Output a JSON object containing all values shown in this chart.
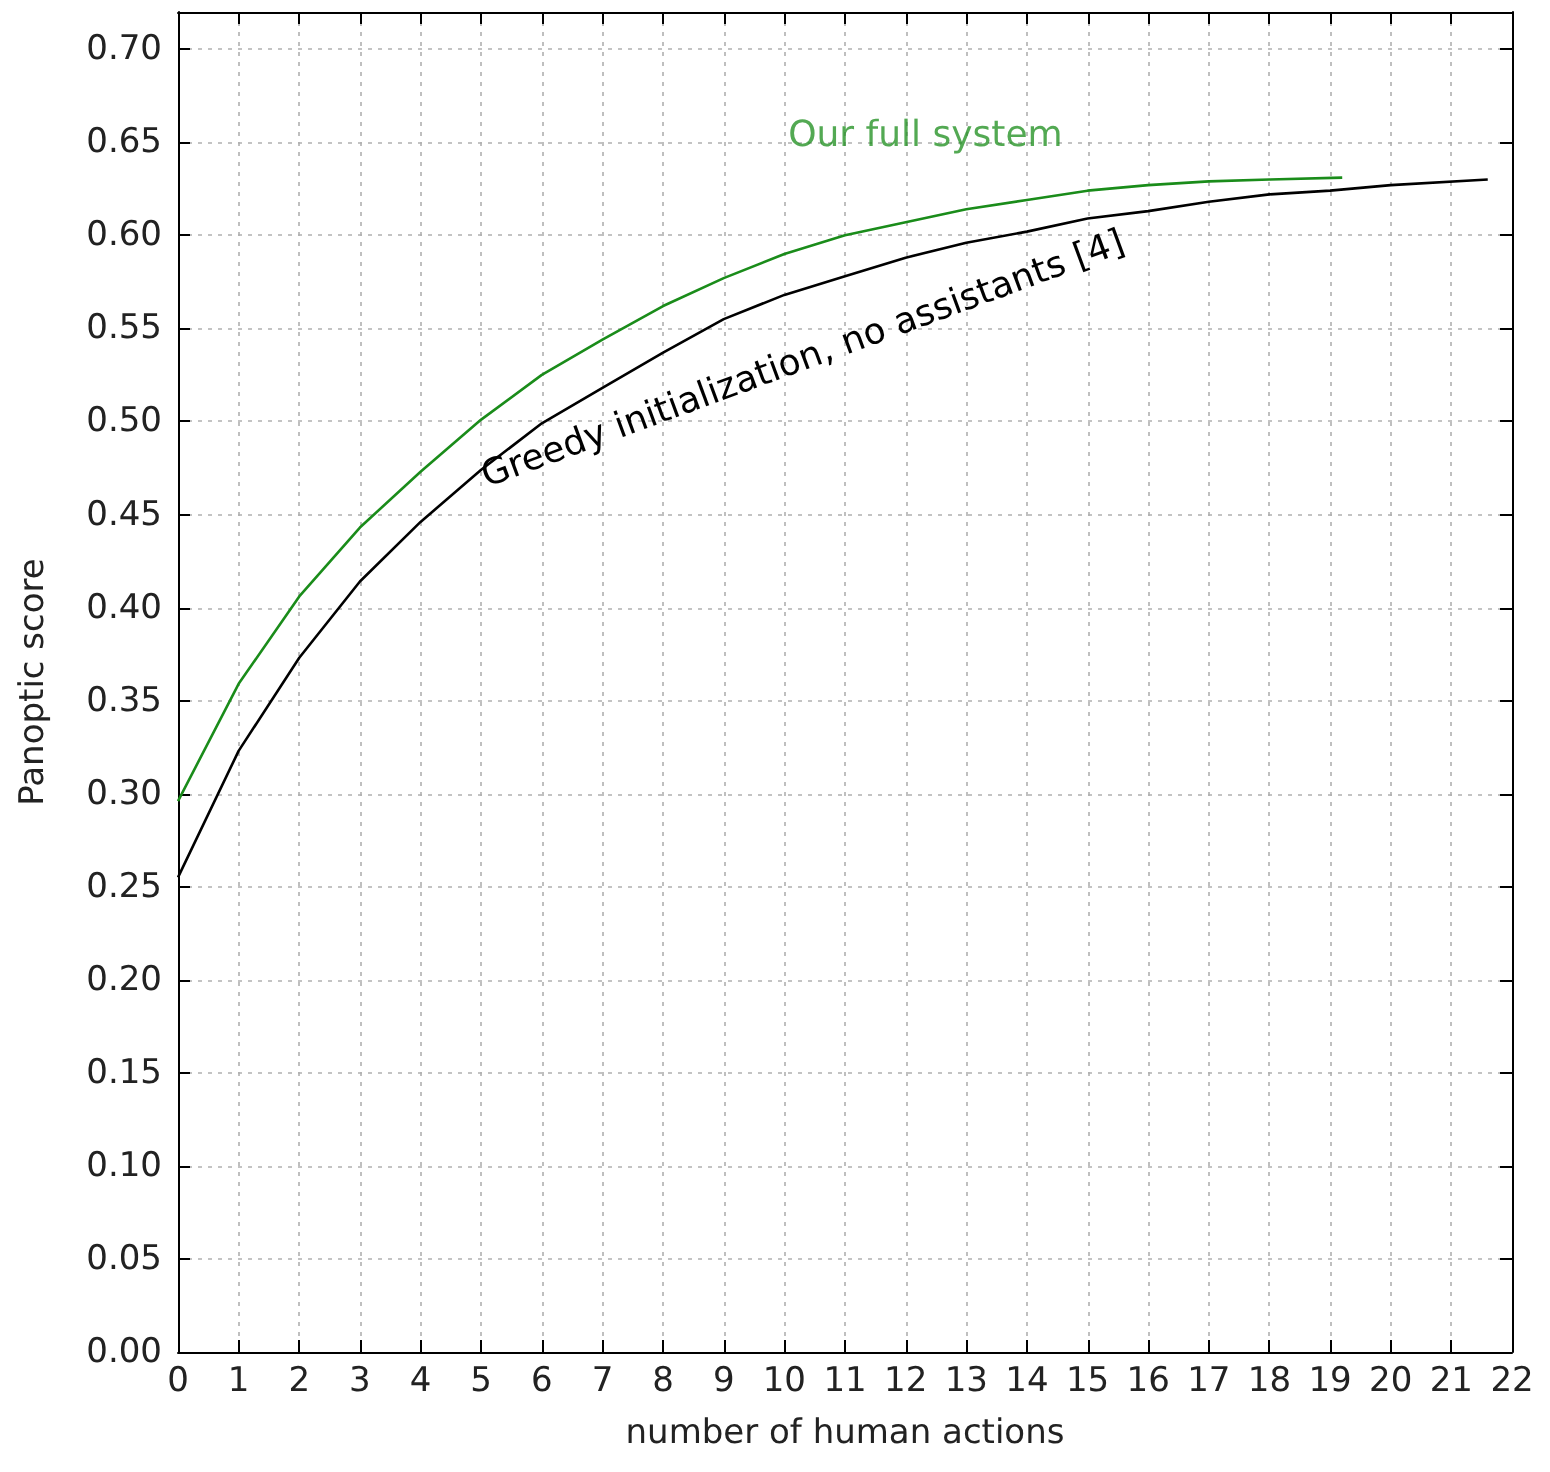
{
  "chart_data": {
    "type": "line",
    "xlabel": "number of human actions",
    "ylabel": "Panoptic score",
    "xlim": [
      0,
      22
    ],
    "ylim": [
      0,
      0.72
    ],
    "xticks": [
      0,
      1,
      2,
      3,
      4,
      5,
      6,
      7,
      8,
      9,
      10,
      11,
      12,
      13,
      14,
      15,
      16,
      17,
      18,
      19,
      20,
      21,
      22
    ],
    "yticks": [
      {
        "value": 0,
        "label": "0.00"
      },
      {
        "value": 0.05,
        "label": "0.05"
      },
      {
        "value": 0.1,
        "label": "0.10"
      },
      {
        "value": 0.15,
        "label": "0.15"
      },
      {
        "value": 0.2,
        "label": "0.20"
      },
      {
        "value": 0.25,
        "label": "0.25"
      },
      {
        "value": 0.3,
        "label": "0.30"
      },
      {
        "value": 0.35,
        "label": "0.35"
      },
      {
        "value": 0.4,
        "label": "0.40"
      },
      {
        "value": 0.45,
        "label": "0.45"
      },
      {
        "value": 0.5,
        "label": "0.50"
      },
      {
        "value": 0.55,
        "label": "0.55"
      },
      {
        "value": 0.6,
        "label": "0.60"
      },
      {
        "value": 0.65,
        "label": "0.65"
      },
      {
        "value": 0.7,
        "label": "0.70"
      }
    ],
    "grid": true,
    "legend": false,
    "marker": "none",
    "line_style": "solid",
    "series": [
      {
        "name": "Our full system",
        "color": "#1a8c1a",
        "x": [
          0,
          1,
          2,
          3,
          4,
          5,
          6,
          7,
          8,
          9,
          10,
          11,
          12,
          13,
          14,
          15,
          16,
          17,
          18,
          19.2
        ],
        "values": [
          0.296,
          0.359,
          0.406,
          0.443,
          0.473,
          0.501,
          0.525,
          0.544,
          0.562,
          0.577,
          0.59,
          0.6,
          0.607,
          0.614,
          0.619,
          0.624,
          0.627,
          0.629,
          0.63,
          0.631
        ]
      },
      {
        "name": "Greedy initialization, no assistants [4]",
        "color": "#000000",
        "x": [
          0,
          1,
          2,
          3,
          4,
          5,
          6,
          7,
          8,
          9,
          10,
          11,
          12,
          13,
          14,
          15,
          16,
          17,
          18,
          19,
          20,
          21.6
        ],
        "values": [
          0.255,
          0.323,
          0.373,
          0.414,
          0.446,
          0.474,
          0.499,
          0.518,
          0.537,
          0.555,
          0.568,
          0.578,
          0.588,
          0.596,
          0.602,
          0.609,
          0.613,
          0.618,
          0.622,
          0.624,
          0.627,
          0.63
        ]
      }
    ]
  }
}
